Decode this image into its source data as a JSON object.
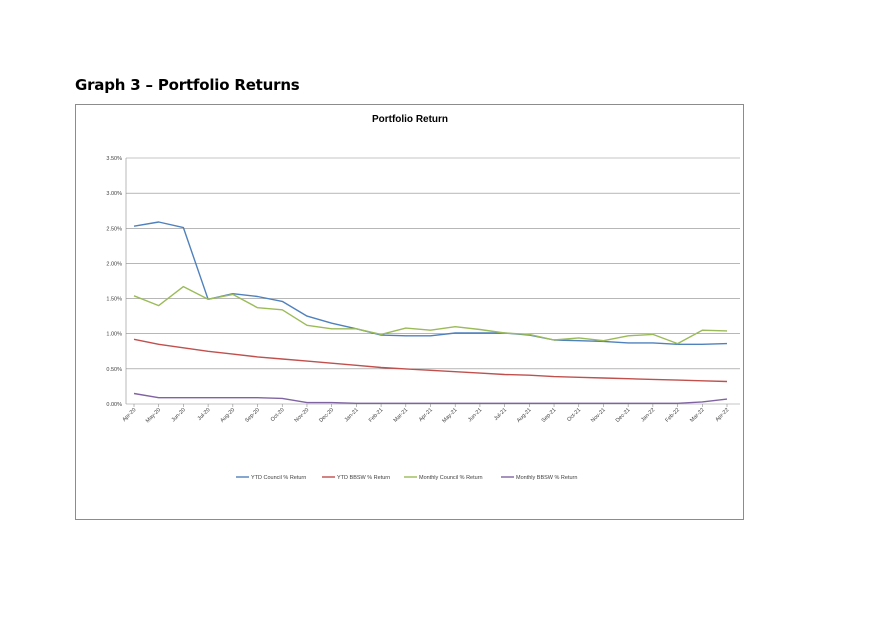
{
  "heading": "Graph 3 – Portfolio Returns",
  "chart_data": {
    "type": "line",
    "title": "Portfolio Return",
    "xlabel": "",
    "ylabel": "",
    "ylim": [
      0,
      3.5
    ],
    "yticks": [
      0,
      0.5,
      1.0,
      1.5,
      2.0,
      2.5,
      3.0,
      3.5
    ],
    "ytick_labels": [
      "0.00%",
      "0.50%",
      "1.00%",
      "1.50%",
      "2.00%",
      "2.50%",
      "3.00%",
      "3.50%"
    ],
    "grid": true,
    "legend_position": "bottom",
    "categories": [
      "Apr-20",
      "May-20",
      "Jun-20",
      "Jul-20",
      "Aug-20",
      "Sep-20",
      "Oct-20",
      "Nov-20",
      "Dec-20",
      "Jan-21",
      "Feb-21",
      "Mar-21",
      "Apr-21",
      "May-21",
      "Jun-21",
      "Jul-21",
      "Aug-21",
      "Sep-21",
      "Oct-21",
      "Nov-21",
      "Dec-21",
      "Jan-22",
      "Feb-22",
      "Mar-22",
      "Apr-22"
    ],
    "series": [
      {
        "name": "YTD Council % Return",
        "color": "#4f81bd",
        "values": [
          2.53,
          2.59,
          2.51,
          1.49,
          1.57,
          1.53,
          1.46,
          1.25,
          1.15,
          1.07,
          0.98,
          0.97,
          0.97,
          1.01,
          1.01,
          1.01,
          0.98,
          0.91,
          0.9,
          0.89,
          0.87,
          0.87,
          0.85,
          0.85,
          0.86
        ]
      },
      {
        "name": "YTD BBSW % Return",
        "color": "#c0504d",
        "values": [
          0.92,
          0.85,
          0.8,
          0.75,
          0.71,
          0.67,
          0.64,
          0.61,
          0.58,
          0.55,
          0.52,
          0.5,
          0.48,
          0.46,
          0.44,
          0.42,
          0.41,
          0.39,
          0.38,
          0.37,
          0.36,
          0.35,
          0.34,
          0.33,
          0.32
        ]
      },
      {
        "name": "Monthly Council % Return",
        "color": "#9bbb59",
        "values": [
          1.54,
          1.4,
          1.67,
          1.49,
          1.56,
          1.37,
          1.34,
          1.12,
          1.07,
          1.07,
          0.99,
          1.08,
          1.05,
          1.1,
          1.06,
          1.01,
          0.99,
          0.91,
          0.94,
          0.9,
          0.97,
          0.99,
          0.86,
          1.05,
          1.04
        ]
      },
      {
        "name": "Monthly BBSW % Return",
        "color": "#8064a2",
        "values": [
          0.15,
          0.09,
          0.09,
          0.09,
          0.09,
          0.09,
          0.08,
          0.02,
          0.02,
          0.01,
          0.01,
          0.01,
          0.01,
          0.01,
          0.01,
          0.01,
          0.01,
          0.01,
          0.01,
          0.01,
          0.01,
          0.01,
          0.01,
          0.03,
          0.07
        ]
      }
    ]
  }
}
